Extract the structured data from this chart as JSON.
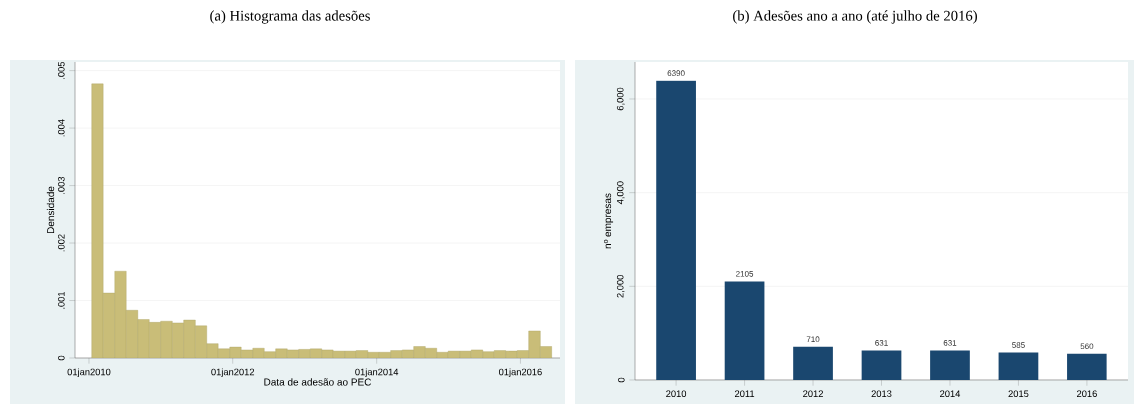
{
  "chart_data": [
    {
      "type": "histogram",
      "title": "(a) Histograma das adesões",
      "xlabel": "Data de adesão ao PEC",
      "ylabel": "Densidade",
      "color": "#c9bd78",
      "bins": [
        "2010-01-15",
        "2010-03-14",
        "2010-05-12",
        "2010-07-09",
        "2010-09-06",
        "2010-11-03",
        "2010-12-31",
        "2011-02-28",
        "2011-04-27",
        "2011-06-25",
        "2011-08-22",
        "2011-10-19",
        "2011-12-17",
        "2012-02-13",
        "2012-04-12",
        "2012-06-09",
        "2012-08-06",
        "2012-10-04",
        "2012-12-01",
        "2013-01-29",
        "2013-03-28",
        "2013-05-25",
        "2013-07-23",
        "2013-09-19",
        "2013-11-17",
        "2014-01-14",
        "2014-03-13",
        "2014-05-11",
        "2014-07-08",
        "2014-09-05",
        "2014-11-02",
        "2014-12-30",
        "2015-02-27",
        "2015-04-26",
        "2015-06-24",
        "2015-08-21",
        "2015-10-18",
        "2015-12-16",
        "2016-02-12",
        "2016-04-11",
        "2016-06-08"
      ],
      "values": [
        0.00477,
        0.00113,
        0.00151,
        0.00083,
        0.00067,
        0.00062,
        0.00064,
        0.00061,
        0.00066,
        0.00056,
        0.00025,
        0.00016,
        0.00019,
        0.00014,
        0.00017,
        0.00011,
        0.00016,
        0.00014,
        0.00015,
        0.00016,
        0.00014,
        0.00012,
        0.00012,
        0.00013,
        0.0001,
        0.0001,
        0.00013,
        0.00014,
        0.0002,
        0.00017,
        0.0001,
        0.00012,
        0.00012,
        0.00014,
        0.00011,
        0.00013,
        0.00012,
        0.00013,
        0.00047,
        0.0002
      ],
      "xlim": [
        "2009-10-22",
        "2016-07-20"
      ],
      "ylim": [
        0,
        0.00515
      ],
      "xticks": [
        {
          "value": "2010-01-01",
          "label": "01jan2010"
        },
        {
          "value": "2012-01-01",
          "label": "01jan2012"
        },
        {
          "value": "2014-01-01",
          "label": "01jan2014"
        },
        {
          "value": "2016-01-01",
          "label": "01jan2016"
        }
      ],
      "yticks": [
        {
          "value": 0,
          "label": "0"
        },
        {
          "value": 0.001,
          "label": ".001"
        },
        {
          "value": 0.002,
          "label": ".002"
        },
        {
          "value": 0.003,
          "label": ".003"
        },
        {
          "value": 0.004,
          "label": ".004"
        },
        {
          "value": 0.005,
          "label": ".005"
        }
      ],
      "grid": "y"
    },
    {
      "type": "bar",
      "title": "(b) Adesões ano a ano (até julho de 2016)",
      "ylabel": "nº empresas",
      "color": "#1a476f",
      "categories": [
        "2010",
        "2011",
        "2012",
        "2013",
        "2014",
        "2015",
        "2016"
      ],
      "values": [
        6390,
        2105,
        710,
        631,
        631,
        585,
        560
      ],
      "ylim": [
        0,
        6790
      ],
      "yticks": [
        {
          "value": 0,
          "label": "0"
        },
        {
          "value": 2000,
          "label": "2,000"
        },
        {
          "value": 4000,
          "label": "4,000"
        },
        {
          "value": 6000,
          "label": "6,000"
        }
      ],
      "grid": "y",
      "data_labels": true
    }
  ]
}
